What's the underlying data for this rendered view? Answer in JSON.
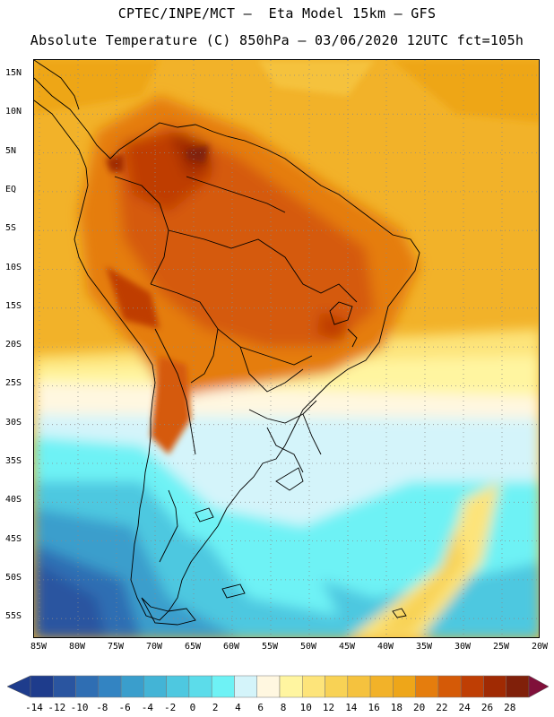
{
  "header": {
    "title_line1": "CPTEC/INPE/MCT –  Eta Model 15km – GFS",
    "title_line2": "Absolute Temperature (C) 850hPa – 03/06/2020 12UTC fct=105h"
  },
  "map": {
    "lat_labels": [
      "15N",
      "10N",
      "5N",
      "EQ",
      "5S",
      "10S",
      "15S",
      "20S",
      "25S",
      "30S",
      "35S",
      "40S",
      "45S",
      "50S",
      "55S"
    ],
    "lon_labels": [
      "85W",
      "80W",
      "75W",
      "70W",
      "65W",
      "60W",
      "55W",
      "50W",
      "45W",
      "40W",
      "35W",
      "30W",
      "25W",
      "20W"
    ]
  },
  "colorbar": {
    "labels": [
      "-14",
      "-12",
      "-10",
      "-8",
      "-6",
      "-4",
      "-2",
      "0",
      "2",
      "4",
      "6",
      "8",
      "10",
      "12",
      "14",
      "16",
      "18",
      "20",
      "22",
      "24",
      "26",
      "28"
    ],
    "colors": [
      "#1e3c8c",
      "#2a55a0",
      "#2f6eb3",
      "#3384c2",
      "#3a9ecc",
      "#43b4d6",
      "#4ec8e0",
      "#5cdcea",
      "#6ef2f5",
      "#d4f4fa",
      "#fff7e0",
      "#fff5a0",
      "#fde47a",
      "#f8d255",
      "#f5c23e",
      "#f2b229",
      "#eea619",
      "#e57d0d",
      "#d55a07",
      "#bf3e04",
      "#a02a03",
      "#80200a"
    ],
    "under_color": "#1e3c8c",
    "over_color": "#80103a"
  },
  "icons": {
    "map": "temperature-map-icon",
    "colorbar_left": "colorbar-lower-arrow-icon",
    "colorbar_right": "colorbar-upper-arrow-icon"
  }
}
